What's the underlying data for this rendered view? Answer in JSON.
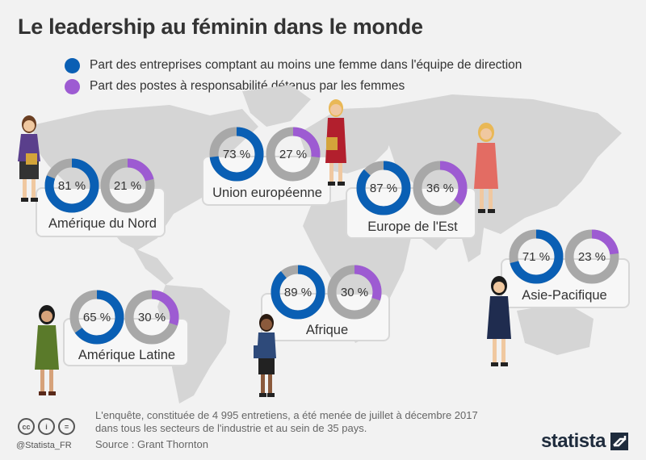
{
  "title": "Le leadership au féminin dans le monde",
  "legend": {
    "item1": "Part des entreprises comptant au moins une femme dans l'équipe de direction",
    "item2": "Part des postes à responsabilité détenus par les femmes"
  },
  "colors": {
    "series1": "#0a5fb4",
    "series2": "#9d5bd2",
    "track": "#a8a8a8",
    "map": "#d5d5d5"
  },
  "chart_data": {
    "type": "donut",
    "title": "Le leadership au féminin dans le monde",
    "series": [
      {
        "name": "Part des entreprises comptant au moins une femme dans l'équipe de direction"
      },
      {
        "name": "Part des postes à responsabilité détenus par les femmes"
      }
    ],
    "regions": [
      {
        "label": "Amérique du Nord",
        "values": [
          81,
          21
        ],
        "display": [
          "81 %",
          "21 %"
        ]
      },
      {
        "label": "Union européenne",
        "values": [
          73,
          27
        ],
        "display": [
          "73 %",
          "27 %"
        ]
      },
      {
        "label": "Europe de l'Est",
        "values": [
          87,
          36
        ],
        "display": [
          "87 %",
          "36 %"
        ]
      },
      {
        "label": "Asie-Pacifique",
        "values": [
          71,
          23
        ],
        "display": [
          "71 %",
          "23 %"
        ]
      },
      {
        "label": "Afrique",
        "values": [
          89,
          30
        ],
        "display": [
          "89 %",
          "30 %"
        ]
      },
      {
        "label": "Amérique Latine",
        "values": [
          65,
          30
        ],
        "display": [
          "65 %",
          "30 %"
        ]
      }
    ]
  },
  "footer": {
    "note_line1": "L'enquête, constituée de 4 995 entretiens, a été menée de juillet à décembre 2017",
    "note_line2": "dans tous les secteurs de l'industrie et au sein de 35 pays.",
    "source": "Source : Grant Thornton",
    "handle": "@Statista_FR",
    "brand": "statista",
    "cc_icons": [
      "cc-icon",
      "by-icon",
      "nd-icon"
    ]
  }
}
